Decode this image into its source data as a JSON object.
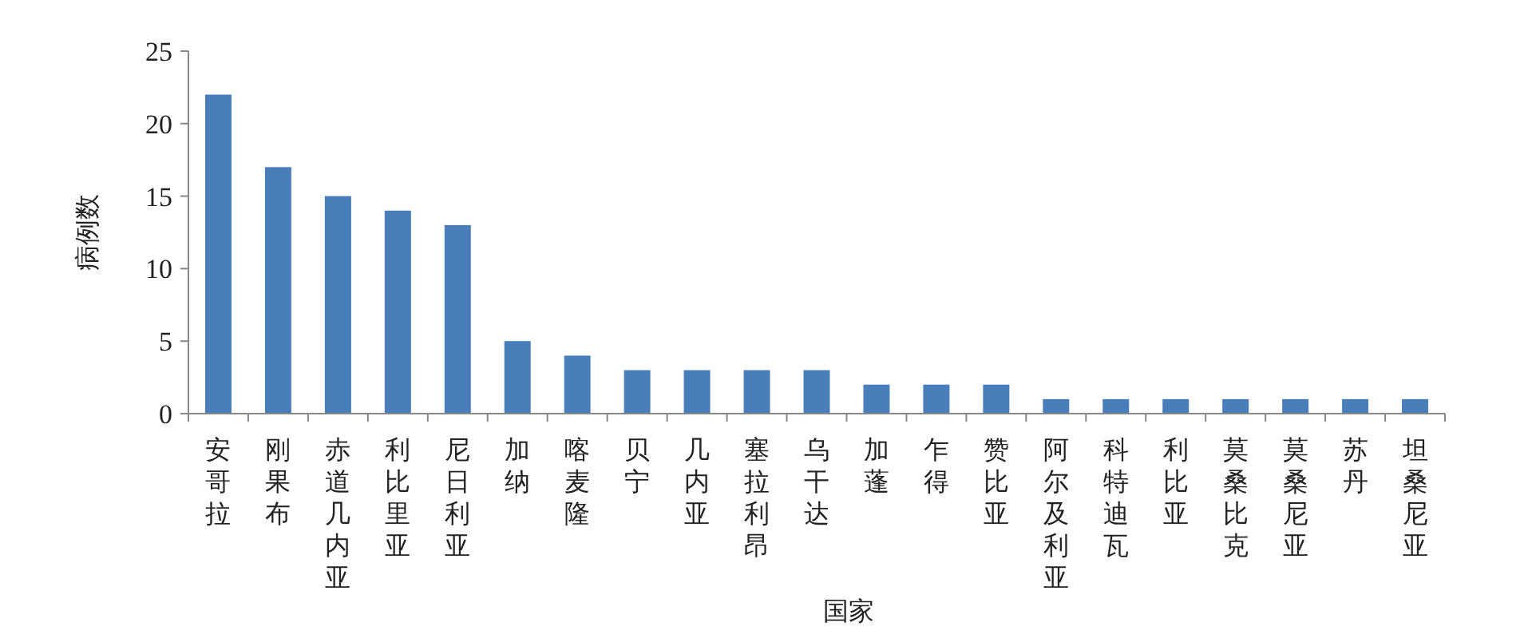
{
  "chart_data": {
    "type": "bar",
    "xlabel": "国家",
    "ylabel": "病例数",
    "categories": [
      "安哥拉",
      "刚果布",
      "赤道几内亚",
      "利比里亚",
      "尼日利亚",
      "加纳",
      "喀麦隆",
      "贝宁",
      "几内亚",
      "塞拉利昂",
      "乌干达",
      "加蓬",
      "乍得",
      "赞比亚",
      "阿尔及利亚",
      "科特迪瓦",
      "利比亚",
      "莫桑比克",
      "莫桑尼亚",
      "苏丹",
      "坦桑尼亚"
    ],
    "values": [
      22,
      17,
      15,
      14,
      13,
      5,
      4,
      3,
      3,
      3,
      3,
      2,
      2,
      2,
      1,
      1,
      1,
      1,
      1,
      1,
      1
    ],
    "color": "#4a7ebb",
    "ylim": [
      0,
      25
    ],
    "yticks": [
      0,
      5,
      10,
      15,
      20,
      25
    ],
    "grid": false
  }
}
